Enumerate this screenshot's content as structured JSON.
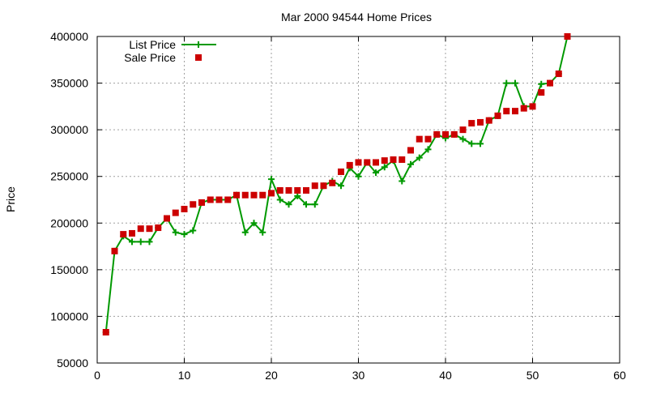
{
  "chart_data": {
    "type": "line",
    "title": "Mar 2000 94544 Home Prices",
    "xlabel": "",
    "ylabel": "Price",
    "xlim": [
      0,
      60
    ],
    "ylim": [
      50000,
      400000
    ],
    "x_ticks": [
      0,
      10,
      20,
      30,
      40,
      50,
      60
    ],
    "y_ticks": [
      50000,
      100000,
      150000,
      200000,
      250000,
      300000,
      350000,
      400000
    ],
    "grid": true,
    "legend_position": "top-left",
    "series": [
      {
        "name": "List Price",
        "style": "line-with-plus-markers",
        "color": "#009900",
        "x": [
          1,
          2,
          3,
          4,
          5,
          6,
          7,
          8,
          9,
          10,
          11,
          12,
          13,
          14,
          15,
          16,
          17,
          18,
          19,
          20,
          21,
          22,
          23,
          24,
          25,
          26,
          27,
          28,
          29,
          30,
          31,
          32,
          33,
          34,
          35,
          36,
          37,
          38,
          39,
          40,
          41,
          42,
          43,
          44,
          45,
          46,
          47,
          48,
          49,
          50,
          51,
          52,
          53,
          54
        ],
        "y": [
          83000,
          170000,
          186000,
          180000,
          180000,
          180000,
          195000,
          205000,
          190000,
          188000,
          192000,
          222000,
          225000,
          225000,
          225000,
          230000,
          190000,
          200000,
          190000,
          247000,
          225000,
          220000,
          229000,
          220000,
          220000,
          240000,
          245000,
          240000,
          259000,
          250000,
          265000,
          254000,
          260000,
          267000,
          245000,
          263000,
          270000,
          279000,
          295000,
          291000,
          295000,
          290000,
          285000,
          285000,
          310000,
          315000,
          350000,
          350000,
          325000,
          325000,
          349000,
          350000,
          360000,
          400000
        ]
      },
      {
        "name": "Sale Price",
        "style": "square-markers",
        "color": "#cc0000",
        "x": [
          1,
          2,
          3,
          4,
          5,
          6,
          7,
          8,
          9,
          10,
          11,
          12,
          13,
          14,
          15,
          16,
          17,
          18,
          19,
          20,
          21,
          22,
          23,
          24,
          25,
          26,
          27,
          28,
          29,
          30,
          31,
          32,
          33,
          34,
          35,
          36,
          37,
          38,
          39,
          40,
          41,
          42,
          43,
          44,
          45,
          46,
          47,
          48,
          49,
          50,
          51,
          52,
          53,
          54
        ],
        "y": [
          83000,
          170000,
          188000,
          189000,
          194000,
          194000,
          195000,
          205000,
          211000,
          215000,
          220000,
          222000,
          225000,
          225000,
          225000,
          230000,
          230000,
          230000,
          230000,
          232000,
          235000,
          235000,
          235000,
          235000,
          240000,
          240000,
          243000,
          255000,
          262000,
          265000,
          265000,
          265000,
          267000,
          268000,
          268000,
          278000,
          290000,
          290000,
          295000,
          295000,
          295000,
          300000,
          307000,
          308000,
          310000,
          315000,
          320000,
          320000,
          323000,
          325000,
          340000,
          350000,
          360000,
          400000
        ]
      }
    ]
  }
}
